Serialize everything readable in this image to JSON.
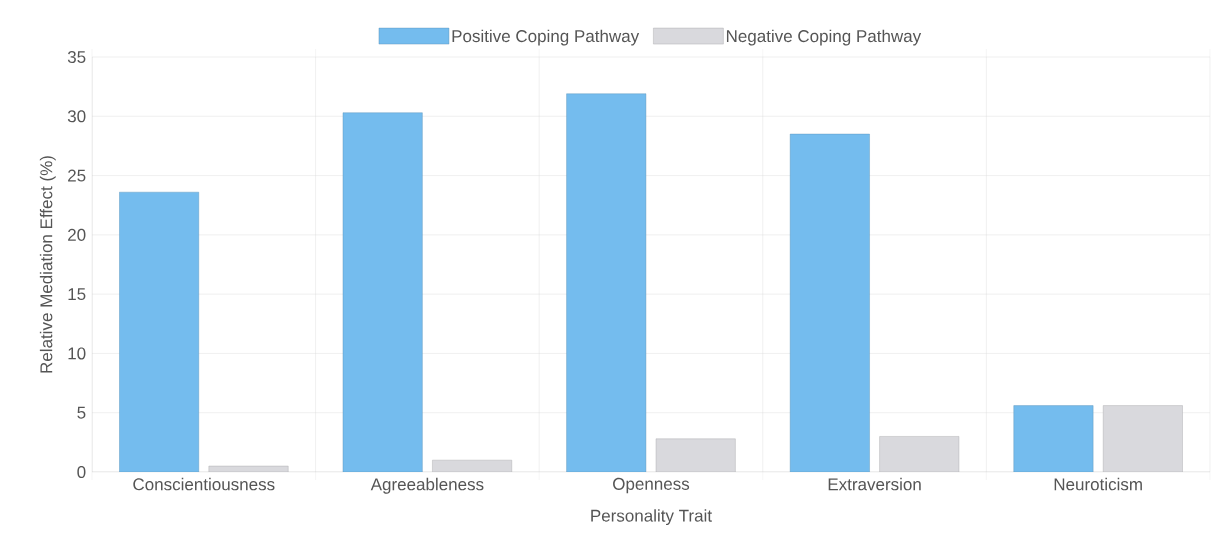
{
  "chart_data": {
    "type": "bar",
    "xlabel": "Personality Trait",
    "ylabel": "Relative Mediation Effect (%)",
    "categories": [
      "Conscientiousness",
      "Agreeableness",
      "Openness",
      "Extraversion",
      "Neuroticism"
    ],
    "series": [
      {
        "name": "Positive Coping Pathway",
        "color": "#74bcee",
        "values": [
          23.6,
          30.3,
          31.9,
          28.5,
          5.6
        ]
      },
      {
        "name": "Negative Coping Pathway",
        "color": "#d9d9dd",
        "values": [
          0.5,
          1.0,
          2.8,
          3.0,
          5.6
        ]
      }
    ],
    "ylim": [
      0,
      35
    ],
    "yticks": [
      0,
      5,
      10,
      15,
      20,
      25,
      30,
      35
    ],
    "grid": true,
    "legend": "top"
  }
}
